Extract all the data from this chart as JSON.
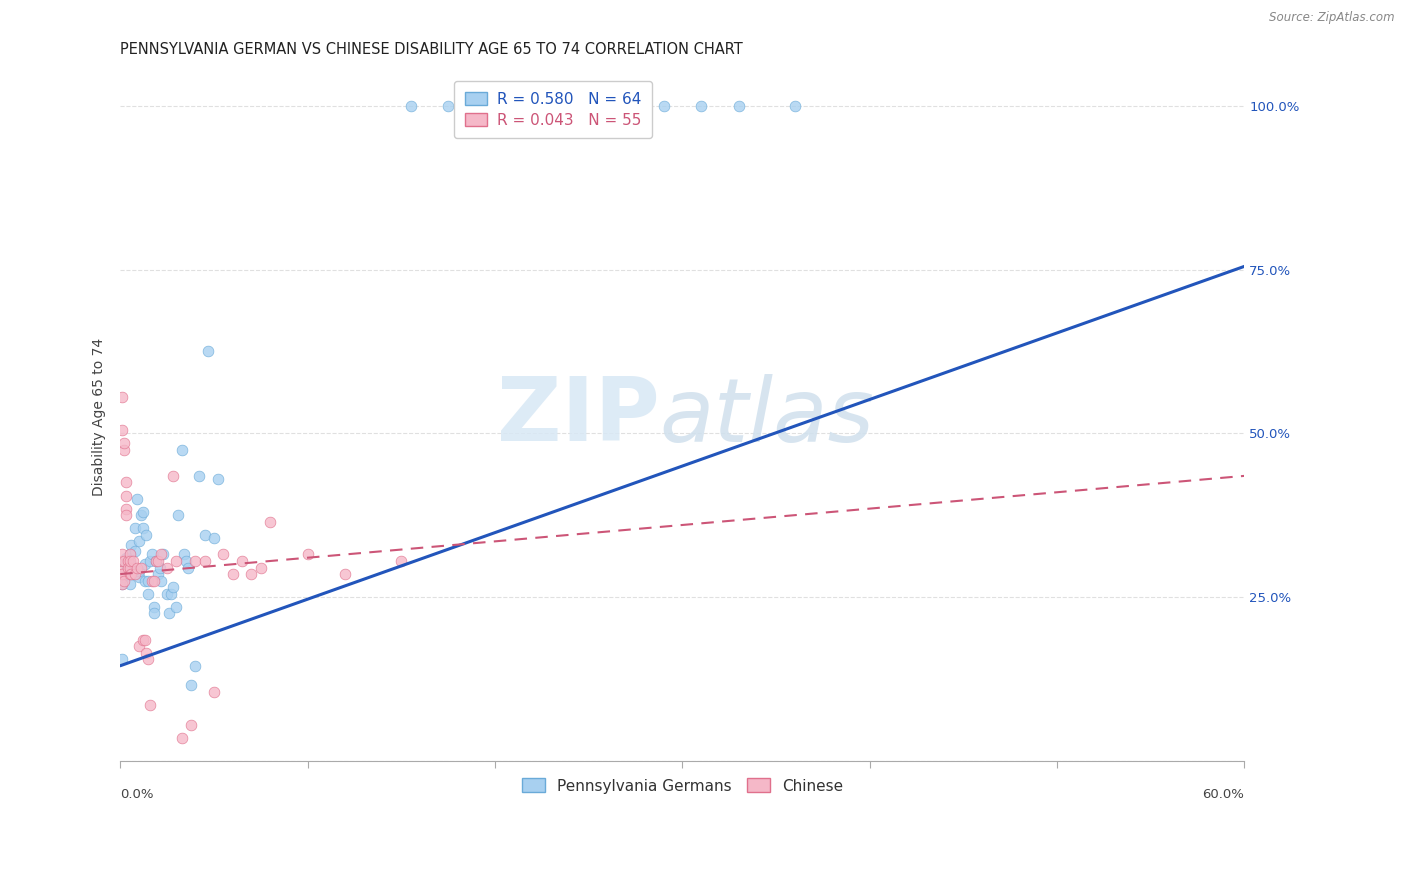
{
  "title": "PENNSYLVANIA GERMAN VS CHINESE DISABILITY AGE 65 TO 74 CORRELATION CHART",
  "source": "Source: ZipAtlas.com",
  "ylabel": "Disability Age 65 to 74",
  "legend1_label": "R = 0.580   N = 64",
  "legend2_label": "R = 0.043   N = 55",
  "bottom_label1": "Pennsylvania Germans",
  "bottom_label2": "Chinese",
  "watermark_zip": "ZIP",
  "watermark_atlas": "atlas",
  "blue_scatter_x": [
    0.001,
    0.001,
    0.002,
    0.002,
    0.003,
    0.003,
    0.003,
    0.004,
    0.004,
    0.005,
    0.005,
    0.005,
    0.006,
    0.006,
    0.007,
    0.008,
    0.008,
    0.009,
    0.01,
    0.01,
    0.01,
    0.011,
    0.012,
    0.012,
    0.013,
    0.013,
    0.014,
    0.015,
    0.015,
    0.016,
    0.017,
    0.018,
    0.018,
    0.019,
    0.02,
    0.021,
    0.022,
    0.023,
    0.025,
    0.026,
    0.027,
    0.028,
    0.03,
    0.031,
    0.033,
    0.034,
    0.035,
    0.036,
    0.038,
    0.04,
    0.042,
    0.045,
    0.047,
    0.05,
    0.052,
    0.155,
    0.175,
    0.21,
    0.24,
    0.265,
    0.29,
    0.31,
    0.33,
    0.36
  ],
  "blue_scatter_y": [
    0.155,
    0.27,
    0.305,
    0.28,
    0.29,
    0.31,
    0.3,
    0.285,
    0.295,
    0.3,
    0.27,
    0.315,
    0.33,
    0.29,
    0.285,
    0.355,
    0.32,
    0.4,
    0.335,
    0.28,
    0.29,
    0.375,
    0.355,
    0.38,
    0.3,
    0.275,
    0.345,
    0.255,
    0.275,
    0.305,
    0.315,
    0.235,
    0.225,
    0.305,
    0.285,
    0.295,
    0.275,
    0.315,
    0.255,
    0.225,
    0.255,
    0.265,
    0.235,
    0.375,
    0.475,
    0.315,
    0.305,
    0.295,
    0.115,
    0.145,
    0.435,
    0.345,
    0.625,
    0.34,
    0.43,
    1.0,
    1.0,
    1.0,
    1.0,
    1.0,
    1.0,
    1.0,
    1.0,
    1.0
  ],
  "pink_scatter_x": [
    0.001,
    0.001,
    0.001,
    0.001,
    0.001,
    0.001,
    0.001,
    0.001,
    0.002,
    0.002,
    0.002,
    0.002,
    0.003,
    0.003,
    0.003,
    0.003,
    0.004,
    0.004,
    0.005,
    0.005,
    0.005,
    0.005,
    0.006,
    0.007,
    0.008,
    0.009,
    0.01,
    0.011,
    0.012,
    0.013,
    0.014,
    0.015,
    0.016,
    0.017,
    0.018,
    0.019,
    0.02,
    0.022,
    0.025,
    0.028,
    0.03,
    0.033,
    0.038,
    0.04,
    0.045,
    0.05,
    0.055,
    0.06,
    0.065,
    0.07,
    0.075,
    0.08,
    0.1,
    0.12,
    0.15
  ],
  "pink_scatter_y": [
    0.285,
    0.305,
    0.29,
    0.315,
    0.27,
    0.555,
    0.505,
    0.285,
    0.475,
    0.485,
    0.305,
    0.275,
    0.385,
    0.375,
    0.405,
    0.425,
    0.305,
    0.295,
    0.315,
    0.285,
    0.295,
    0.305,
    0.285,
    0.305,
    0.285,
    0.295,
    0.175,
    0.295,
    0.185,
    0.185,
    0.165,
    0.155,
    0.085,
    0.275,
    0.275,
    0.305,
    0.305,
    0.315,
    0.295,
    0.435,
    0.305,
    0.035,
    0.055,
    0.305,
    0.305,
    0.105,
    0.315,
    0.285,
    0.305,
    0.285,
    0.295,
    0.365,
    0.315,
    0.285,
    0.305
  ],
  "blue_trend_x": [
    0.0,
    0.6
  ],
  "blue_trend_y": [
    0.145,
    0.755
  ],
  "pink_trend_x": [
    0.0,
    0.6
  ],
  "pink_trend_y": [
    0.285,
    0.435
  ],
  "xmin": 0.0,
  "xmax": 0.6,
  "ymin": 0.0,
  "ymax": 1.05,
  "ytick_positions": [
    0.0,
    0.25,
    0.5,
    0.75,
    1.0
  ],
  "ytick_labels": [
    "",
    "25.0%",
    "50.0%",
    "75.0%",
    "100.0%"
  ],
  "xtick_positions": [
    0.0,
    0.1,
    0.2,
    0.3,
    0.4,
    0.5,
    0.6
  ],
  "bg_color": "#ffffff",
  "blue_color": "#a8d0f0",
  "blue_edge_color": "#6aaad8",
  "pink_color": "#f5b8c8",
  "pink_edge_color": "#e0708c",
  "blue_trend_color": "#2255bb",
  "pink_trend_color": "#cc5577",
  "grid_color": "#e0e0e0",
  "title_fontsize": 10.5,
  "tick_fontsize": 9.5,
  "label_fontsize": 10,
  "scatter_size": 60,
  "source_text": "Source: ZipAtlas.com"
}
